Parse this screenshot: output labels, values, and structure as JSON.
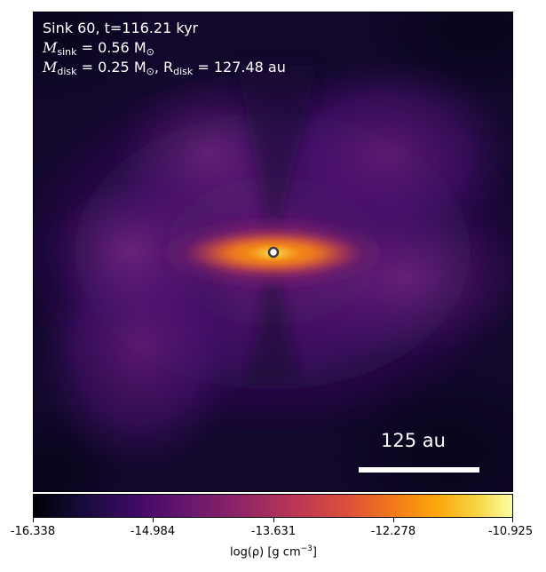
{
  "annotation": {
    "line1": "Sink 60, t=116.21 kyr",
    "sink_mass_label": "M",
    "sink_mass_sub": "sink",
    "sink_mass_value": " = 0.56 M",
    "sun_symbol": "⊙",
    "disk_mass_label": "M",
    "disk_mass_sub": "disk",
    "disk_mass_value": " = 0.25 M",
    "disk_radius_label": ", R",
    "disk_radius_sub": "disk",
    "disk_radius_value": " = 127.48 au"
  },
  "scale_bar": {
    "label": "125 au"
  },
  "colorbar": {
    "ticks": [
      "-16.338",
      "-14.984",
      "-13.631",
      "-12.278",
      "-10.925"
    ],
    "label_prefix": "log(ρ) [g cm",
    "label_exp": "−3",
    "label_suffix": "]",
    "colormap": "inferno"
  }
}
